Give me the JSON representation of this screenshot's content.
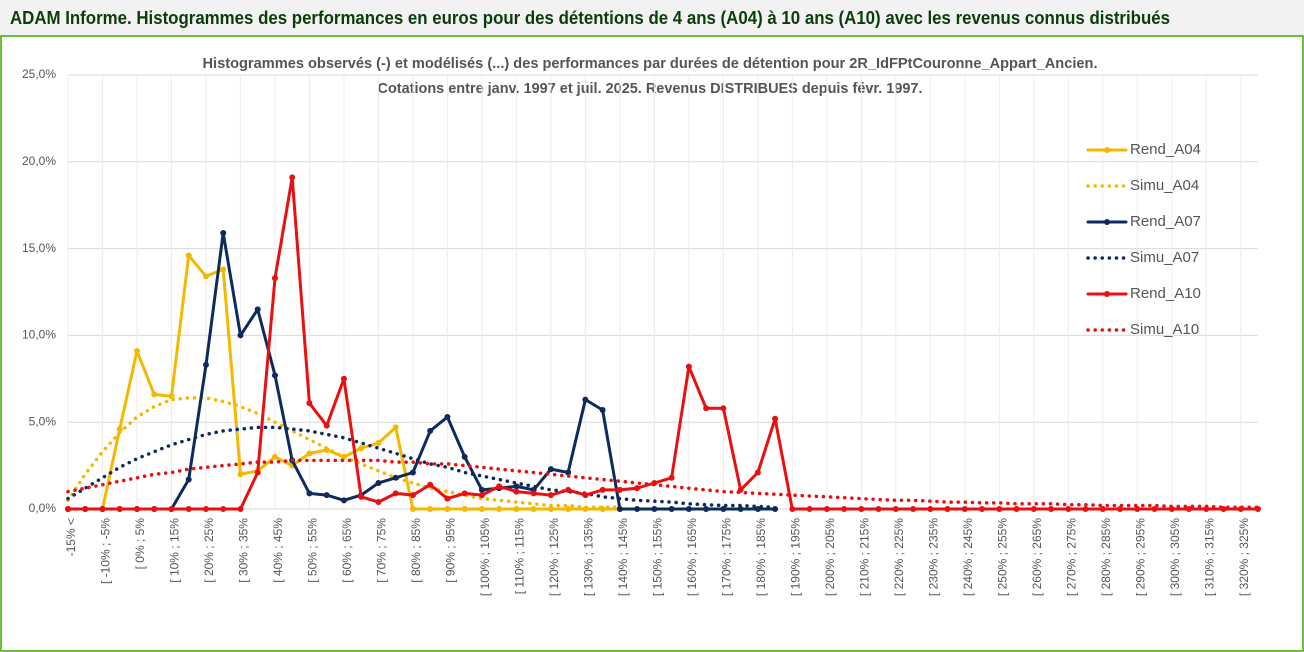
{
  "header": {
    "title": "ADAM Informe. Histogrammes des performances en euros pour des détentions de 4 ans (A04) à 10 ans (A10) avec les revenus connus distribués"
  },
  "chart_data": {
    "type": "line",
    "title": "Histogrammes observés (-) et modélisés (...) des performances par durées de détention pour 2R_IdFPtCouronne_Appart_Ancien.",
    "subtitle": "Cotations entre janv. 1997 et juil. 2025. Revenus DISTRIBUES depuis févr. 1997.",
    "categories": [
      "-15% <",
      null,
      "[ -10% ; -5%",
      null,
      "[ 0% ; 5%",
      null,
      "[ 10% ; 15%",
      null,
      "[ 20% ; 25%",
      null,
      "[ 30% ; 35%",
      null,
      "[ 40% ; 45%",
      null,
      "[ 50% ; 55%",
      null,
      "[ 60% ; 65%",
      null,
      "[ 70% ; 75%",
      null,
      "[ 80% ; 85%",
      null,
      "[ 90% ; 95%",
      null,
      "[ 100% ; 105%",
      null,
      "[ 110% ; 115%",
      null,
      "[ 120% ; 125%",
      null,
      "[ 130% ; 135%",
      null,
      "[ 140% ; 145%",
      null,
      "[ 150% ; 155%",
      null,
      "[ 160% ; 165%",
      null,
      "[ 170% ; 175%",
      null,
      "[ 180% ; 185%",
      null,
      "[ 190% ; 195%",
      null,
      "[ 200% ; 205%",
      null,
      "[ 210% ; 215%",
      null,
      "[ 220% ; 225%",
      null,
      "[ 230% ; 235%",
      null,
      "[ 240% ; 245%",
      null,
      "[ 250% ; 255%",
      null,
      "[ 260% ; 265%",
      null,
      "[ 270% ; 275%",
      null,
      "[ 280% ; 285%",
      null,
      "[ 290% ; 295%",
      null,
      "[ 300% ; 305%",
      null,
      "[ 310% ; 315%",
      null,
      "[ 320% ; 325%",
      null
    ],
    "series": [
      {
        "name": "Rend_A04",
        "color": "#f5b800",
        "dash": "solid",
        "markers": true,
        "values": [
          0,
          0,
          0,
          4.6,
          9.1,
          6.6,
          6.5,
          14.6,
          13.4,
          13.8,
          2.0,
          2.2,
          3.0,
          2.5,
          3.2,
          3.4,
          3.0,
          3.5,
          3.8,
          4.7,
          0,
          0,
          0,
          0,
          0,
          0,
          0,
          0,
          0,
          0,
          0,
          0,
          0,
          null,
          null,
          null,
          null,
          null,
          null,
          null,
          null,
          null,
          null,
          null,
          null,
          null,
          null,
          null,
          null,
          null,
          null,
          null,
          null,
          null,
          null,
          null,
          null,
          null,
          null,
          null,
          null,
          null,
          null,
          null,
          null,
          null,
          null,
          null,
          null,
          null
        ]
      },
      {
        "name": "Simu_A04",
        "color": "#f5b800",
        "dash": "dotted",
        "markers": false,
        "values": [
          0.5,
          2.0,
          3.3,
          4.4,
          5.3,
          5.9,
          6.3,
          6.4,
          6.4,
          6.2,
          5.9,
          5.5,
          5.0,
          4.5,
          4.0,
          3.5,
          3.0,
          2.6,
          2.2,
          1.8,
          1.5,
          1.2,
          1.0,
          0.8,
          0.6,
          0.5,
          0.4,
          0.3,
          0.2,
          0.2,
          0.1,
          0.1,
          0.1,
          null,
          null,
          null,
          null,
          null,
          null,
          null,
          null,
          null,
          null,
          null,
          null,
          null,
          null,
          null,
          null,
          null,
          null,
          null,
          null,
          null,
          null,
          null,
          null,
          null,
          null,
          null,
          null,
          null,
          null,
          null,
          null,
          null,
          null,
          null,
          null,
          null
        ]
      },
      {
        "name": "Rend_A07",
        "color": "#0f2a5c",
        "dash": "solid",
        "markers": true,
        "values": [
          0,
          0,
          0,
          0,
          0,
          0,
          0,
          1.7,
          8.3,
          15.9,
          10.0,
          11.5,
          7.7,
          2.8,
          0.9,
          0.8,
          0.5,
          0.8,
          1.5,
          1.8,
          2.1,
          4.5,
          5.3,
          3.0,
          1.1,
          1.2,
          1.3,
          1.1,
          2.3,
          2.1,
          6.3,
          5.7,
          0,
          0,
          0,
          0,
          0,
          0,
          0,
          0,
          0,
          0,
          null,
          null,
          null,
          null,
          null,
          null,
          null,
          null,
          null,
          null,
          null,
          null,
          null,
          null,
          null,
          null,
          null,
          null,
          null,
          null,
          null,
          null,
          null,
          null,
          null,
          null,
          null,
          null
        ]
      },
      {
        "name": "Simu_A07",
        "color": "#0f2a5c",
        "dash": "dotted",
        "markers": false,
        "values": [
          0.6,
          1.2,
          1.8,
          2.4,
          2.9,
          3.3,
          3.7,
          4.0,
          4.3,
          4.5,
          4.6,
          4.7,
          4.7,
          4.6,
          4.5,
          4.3,
          4.1,
          3.8,
          3.5,
          3.2,
          2.9,
          2.6,
          2.4,
          2.1,
          1.9,
          1.7,
          1.5,
          1.3,
          1.1,
          1.0,
          0.9,
          0.7,
          0.6,
          0.5,
          0.45,
          0.4,
          0.3,
          0.25,
          0.2,
          0.2,
          0.15,
          0.1,
          null,
          null,
          null,
          null,
          null,
          null,
          null,
          null,
          null,
          null,
          null,
          null,
          null,
          null,
          null,
          null,
          null,
          null,
          null,
          null,
          null,
          null,
          null,
          null,
          null,
          null,
          null,
          null
        ]
      },
      {
        "name": "Rend_A10",
        "color": "#e81010",
        "dash": "solid",
        "markers": true,
        "values": [
          0,
          0,
          0,
          0,
          0,
          0,
          0,
          0,
          0,
          0,
          0,
          2.1,
          13.3,
          19.1,
          6.1,
          4.8,
          7.5,
          0.7,
          0.4,
          0.9,
          0.8,
          1.4,
          0.6,
          0.9,
          0.8,
          1.3,
          1.0,
          0.9,
          0.8,
          1.1,
          0.8,
          1.1,
          1.1,
          1.2,
          1.5,
          1.8,
          8.2,
          5.8,
          5.8,
          1.1,
          2.1,
          5.2,
          0,
          0,
          0,
          0,
          0,
          0,
          0,
          0,
          0,
          0,
          0,
          0,
          0,
          0,
          0,
          0,
          0,
          0,
          0,
          0,
          0,
          0,
          0,
          0,
          0,
          0,
          0,
          0
        ]
      },
      {
        "name": "Simu_A10",
        "color": "#e81010",
        "dash": "dotted",
        "markers": false,
        "values": [
          1.0,
          1.2,
          1.4,
          1.6,
          1.8,
          2.0,
          2.1,
          2.3,
          2.4,
          2.5,
          2.6,
          2.7,
          2.7,
          2.8,
          2.8,
          2.8,
          2.8,
          2.8,
          2.8,
          2.7,
          2.7,
          2.6,
          2.6,
          2.5,
          2.4,
          2.3,
          2.2,
          2.1,
          2.0,
          1.9,
          1.8,
          1.7,
          1.6,
          1.5,
          1.4,
          1.3,
          1.2,
          1.1,
          1.0,
          0.95,
          0.9,
          0.85,
          0.8,
          0.75,
          0.7,
          0.65,
          0.6,
          0.55,
          0.5,
          0.5,
          0.45,
          0.4,
          0.4,
          0.35,
          0.35,
          0.3,
          0.3,
          0.3,
          0.25,
          0.25,
          0.2,
          0.2,
          0.2,
          0.2,
          0.15,
          0.15,
          0.15,
          0.1,
          0.1,
          0.1
        ]
      }
    ],
    "ylim": [
      0,
      25
    ],
    "yticks": [
      {
        "value": 0,
        "label": "0,0%"
      },
      {
        "value": 5,
        "label": "5,0%"
      },
      {
        "value": 10,
        "label": "10,0%"
      },
      {
        "value": 15,
        "label": "15,0%"
      },
      {
        "value": 20,
        "label": "20,0%"
      },
      {
        "value": 25,
        "label": "25,0%"
      }
    ],
    "grid": true,
    "legend": "right"
  }
}
